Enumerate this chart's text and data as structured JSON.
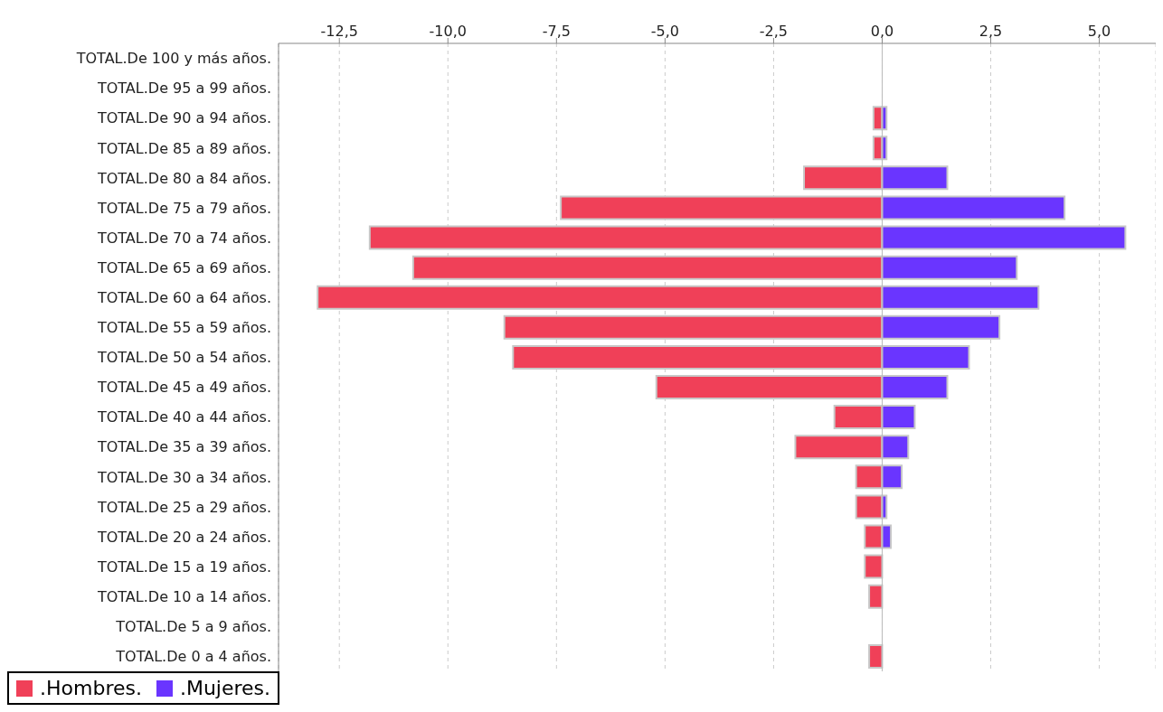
{
  "chart_data": {
    "type": "bar",
    "orientation": "horizontal",
    "stacked": true,
    "categories": [
      "TOTAL.De 100 y más años.",
      "TOTAL.De 95 a 99 años.",
      "TOTAL.De 90 a 94 años.",
      "TOTAL.De 85 a 89 años.",
      "TOTAL.De 80 a 84 años.",
      "TOTAL.De 75 a 79 años.",
      "TOTAL.De 70 a 74 años.",
      "TOTAL.De 65 a 69 años.",
      "TOTAL.De 60 a 64 años.",
      "TOTAL.De 55 a 59 años.",
      "TOTAL.De 50 a 54 años.",
      "TOTAL.De 45 a 49 años.",
      "TOTAL.De 40 a 44 años.",
      "TOTAL.De 35 a 39 años.",
      "TOTAL.De 30 a 34 años.",
      "TOTAL.De 25 a 29 años.",
      "TOTAL.De 20 a 24 años.",
      "TOTAL.De 15 a 19 años.",
      "TOTAL.De 10 a 14 años.",
      "TOTAL.De 5 a 9 años.",
      "TOTAL.De 0 a 4 años."
    ],
    "series": [
      {
        "name": ".Hombres.",
        "color": "#f04058",
        "values": [
          0,
          0,
          -0.2,
          -0.2,
          -1.8,
          -7.4,
          -11.8,
          -10.8,
          -13.0,
          -8.7,
          -8.5,
          -5.2,
          -1.1,
          -2.0,
          -0.6,
          -0.6,
          -0.4,
          -0.4,
          -0.3,
          0,
          -0.3
        ]
      },
      {
        "name": ".Mujeres.",
        "color": "#6a35ff",
        "values": [
          0,
          0,
          0.1,
          0.1,
          1.5,
          4.2,
          5.6,
          3.1,
          3.6,
          2.7,
          2.0,
          1.5,
          0.75,
          0.6,
          0.45,
          0.1,
          0.2,
          0,
          0,
          0,
          0
        ]
      }
    ],
    "xlim": [
      -13.9,
      6.3
    ],
    "xticks": [
      {
        "value": -12.5,
        "label": "-12,5"
      },
      {
        "value": -10,
        "label": "-10,0"
      },
      {
        "value": -7.5,
        "label": "-7,5"
      },
      {
        "value": -5,
        "label": "-5,0"
      },
      {
        "value": -2.5,
        "label": "-2,5"
      },
      {
        "value": 0,
        "label": "0,0"
      },
      {
        "value": 2.5,
        "label": "2,5"
      },
      {
        "value": 5,
        "label": "5,0"
      }
    ],
    "grid": "x",
    "legend": "bottom"
  }
}
